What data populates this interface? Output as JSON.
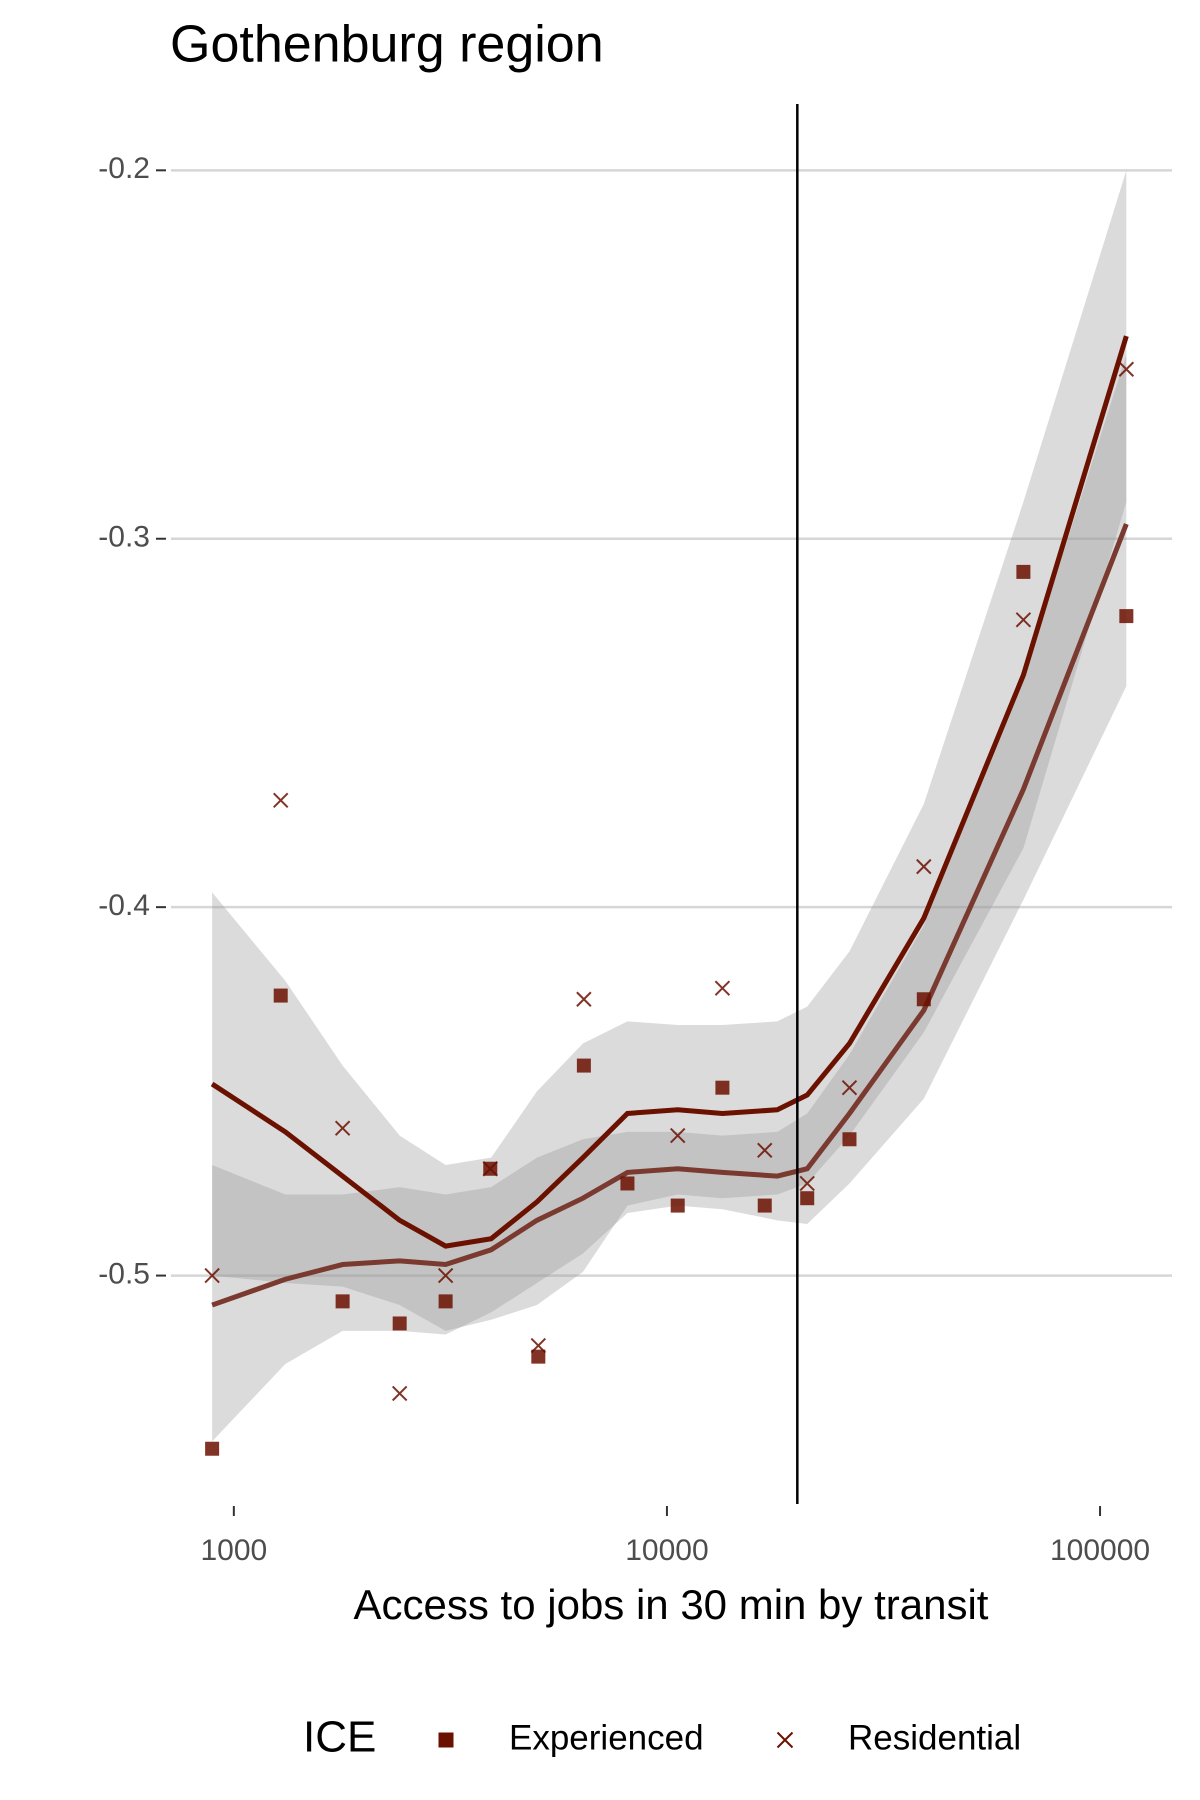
{
  "chart_data": {
    "type": "scatter",
    "title": "Gothenburg region",
    "x_label": "Access to jobs in 30 min by transit",
    "legend_title": "ICE",
    "legend_position": "bottom",
    "log_x": true,
    "grid": true,
    "xlim": [
      716,
      146600
    ],
    "ylim": [
      -0.562,
      -0.182
    ],
    "xticks": [
      1000,
      10000,
      100000
    ],
    "yticks": [
      -0.2,
      -0.3,
      -0.4,
      -0.5
    ],
    "vline_x": 20000,
    "band_color": "#999999",
    "fit_x": [
      891,
      1315,
      1783,
      2415,
      3083,
      3927,
      5010,
      6397,
      8106,
      10590,
      13430,
      17980,
      21080,
      26390,
      39180,
      66530,
      115000
    ],
    "series": [
      {
        "name": "Experienced",
        "marker": "square",
        "color": "#6b1100",
        "fit_color": "#7a3a30",
        "x": [
          891,
          1283,
          1783,
          2415,
          3083,
          3909,
          5047,
          6430,
          8106,
          10590,
          13430,
          16820,
          21080,
          26390,
          39180,
          66530,
          115000
        ],
        "values": [
          -0.547,
          -0.424,
          -0.507,
          -0.513,
          -0.507,
          -0.471,
          -0.522,
          -0.443,
          -0.475,
          -0.481,
          -0.449,
          -0.481,
          -0.479,
          -0.463,
          -0.425,
          -0.309,
          -0.321
        ],
        "fit_values": [
          -0.508,
          -0.501,
          -0.497,
          -0.496,
          -0.497,
          -0.493,
          -0.485,
          -0.479,
          -0.472,
          -0.471,
          -0.472,
          -0.473,
          -0.471,
          -0.456,
          -0.428,
          -0.368,
          -0.296
        ],
        "fit_upper": [
          -0.47,
          -0.478,
          -0.478,
          -0.476,
          -0.478,
          -0.476,
          -0.468,
          -0.463,
          -0.461,
          -0.461,
          -0.462,
          -0.461,
          -0.456,
          -0.44,
          -0.405,
          -0.338,
          -0.25
        ],
        "fit_lower": [
          -0.545,
          -0.524,
          -0.515,
          -0.515,
          -0.516,
          -0.51,
          -0.502,
          -0.494,
          -0.483,
          -0.481,
          -0.482,
          -0.485,
          -0.486,
          -0.475,
          -0.452,
          -0.398,
          -0.34
        ]
      },
      {
        "name": "Residential",
        "marker": "cross",
        "color": "#6b1100",
        "fit_color": "#6b1100",
        "x": [
          891,
          1283,
          1783,
          2415,
          3083,
          3909,
          5047,
          6430,
          10590,
          13430,
          16820,
          21080,
          26390,
          39180,
          66530,
          115000
        ],
        "values": [
          -0.5,
          -0.371,
          -0.46,
          -0.532,
          -0.5,
          -0.471,
          -0.519,
          -0.425,
          -0.462,
          -0.422,
          -0.466,
          -0.475,
          -0.449,
          -0.389,
          -0.322,
          -0.254
        ],
        "fit_values": [
          -0.448,
          -0.461,
          -0.473,
          -0.485,
          -0.492,
          -0.49,
          -0.48,
          -0.468,
          -0.456,
          -0.455,
          -0.456,
          -0.455,
          -0.451,
          -0.437,
          -0.403,
          -0.337,
          -0.245
        ],
        "fit_upper": [
          -0.396,
          -0.42,
          -0.443,
          -0.462,
          -0.47,
          -0.468,
          -0.45,
          -0.437,
          -0.431,
          -0.432,
          -0.432,
          -0.431,
          -0.427,
          -0.412,
          -0.372,
          -0.29,
          -0.2
        ],
        "fit_lower": [
          -0.5,
          -0.502,
          -0.503,
          -0.508,
          -0.515,
          -0.512,
          -0.508,
          -0.499,
          -0.481,
          -0.478,
          -0.479,
          -0.478,
          -0.475,
          -0.462,
          -0.434,
          -0.384,
          -0.29
        ]
      }
    ]
  }
}
